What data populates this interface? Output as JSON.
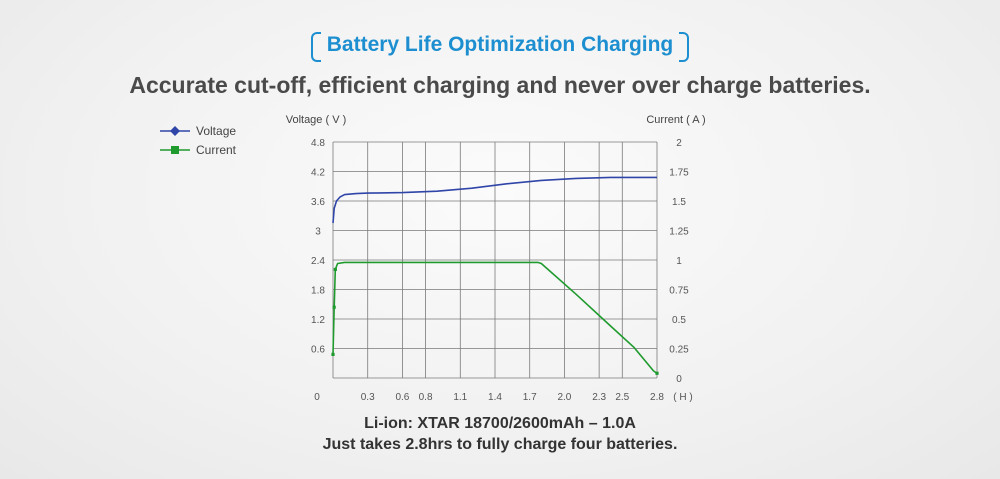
{
  "header": {
    "title": "Battery Life Optimization Charging",
    "subtitle": "Accurate cut-off, efficient charging and never over charge batteries."
  },
  "footer": {
    "line1": "Li-ion: XTAR 18700/2600mAh  – 1.0A",
    "line2": "Just takes 2.8hrs to fully charge four batteries."
  },
  "colors": {
    "voltage": "#2f45a8",
    "current": "#1f9a2d",
    "grid": "#7a7a7a",
    "title": "#1d8fd0"
  },
  "chart_data": {
    "type": "line",
    "y_left_label": "Voltage ( V )",
    "y_right_label": "Current ( A )",
    "x_unit": "( H )",
    "x_ticks": [
      "0",
      "0.3",
      "0.6",
      "0.8",
      "1.1",
      "1.4",
      "1.7",
      "2.0",
      "2.3",
      "2.5",
      "2.8"
    ],
    "y_left_ticks": [
      "0.6",
      "1.2",
      "1.8",
      "2.4",
      "3",
      "3.6",
      "4.2",
      "4.8"
    ],
    "y_right_ticks": [
      "0",
      "0.25",
      "0.5",
      "0.75",
      "1",
      "1.25",
      "1.5",
      "1.75",
      "2"
    ],
    "xlim": [
      0,
      2.8
    ],
    "ylim_left": [
      0,
      4.8
    ],
    "ylim_right": [
      0,
      2
    ],
    "grid": true,
    "legend_position": "top-left",
    "series": [
      {
        "name": "Voltage",
        "axis": "left",
        "marker": "diamond",
        "x": [
          0,
          0.01,
          0.03,
          0.06,
          0.1,
          0.2,
          0.3,
          0.6,
          0.9,
          1.2,
          1.5,
          1.8,
          2.1,
          2.4,
          2.6,
          2.8
        ],
        "y": [
          3.15,
          3.45,
          3.6,
          3.68,
          3.73,
          3.75,
          3.76,
          3.77,
          3.8,
          3.86,
          3.95,
          4.02,
          4.06,
          4.08,
          4.08,
          4.08
        ]
      },
      {
        "name": "Current",
        "axis": "right",
        "marker": "square",
        "x": [
          0,
          0.01,
          0.02,
          0.04,
          0.1,
          0.6,
          1.2,
          1.6,
          1.77,
          1.8,
          2.1,
          2.4,
          2.6,
          2.77,
          2.8
        ],
        "y": [
          0.2,
          0.6,
          0.92,
          0.97,
          0.98,
          0.98,
          0.98,
          0.98,
          0.98,
          0.97,
          0.71,
          0.44,
          0.26,
          0.06,
          0.04
        ]
      }
    ]
  }
}
